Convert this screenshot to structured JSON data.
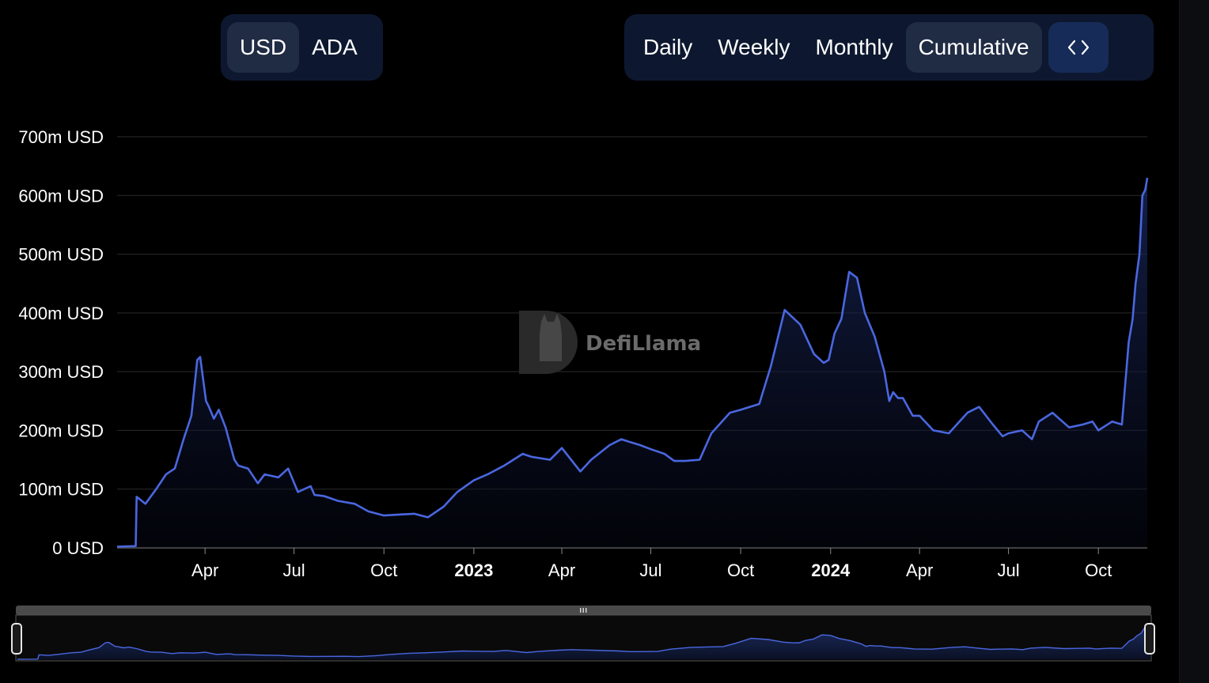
{
  "currency_toggle": {
    "options": [
      "USD",
      "ADA"
    ],
    "selected": "USD"
  },
  "period_toggle": {
    "options": [
      "Daily",
      "Weekly",
      "Monthly",
      "Cumulative"
    ],
    "selected": "Cumulative"
  },
  "embed_button": {
    "icon": "code-icon",
    "glyph": "<>"
  },
  "watermark": {
    "text": "DefiLlama"
  },
  "colors": {
    "line": "#4a67e0",
    "area_top": "#1b2a63",
    "grid": "#2a2a2a",
    "active_bg": "#202b44",
    "panel_bg": "#0d1830"
  },
  "chart_data": {
    "type": "area",
    "title": "",
    "xlabel": "",
    "ylabel": "",
    "grid": true,
    "ylim": [
      0,
      700
    ],
    "y_unit": "m USD",
    "y_ticks": [
      0,
      100,
      200,
      300,
      400,
      500,
      600,
      700
    ],
    "y_tick_labels": [
      "0 USD",
      "100m USD",
      "200m USD",
      "300m USD",
      "400m USD",
      "500m USD",
      "600m USD",
      "700m USD"
    ],
    "x_range": [
      "2022-01-01",
      "2024-11-20"
    ],
    "x_ticks": [
      {
        "date": "2022-04-01",
        "label": "Apr",
        "bold": false
      },
      {
        "date": "2022-07-01",
        "label": "Jul",
        "bold": false
      },
      {
        "date": "2022-10-01",
        "label": "Oct",
        "bold": false
      },
      {
        "date": "2023-01-01",
        "label": "2023",
        "bold": true
      },
      {
        "date": "2023-04-01",
        "label": "Apr",
        "bold": false
      },
      {
        "date": "2023-07-01",
        "label": "Jul",
        "bold": false
      },
      {
        "date": "2023-10-01",
        "label": "Oct",
        "bold": false
      },
      {
        "date": "2024-01-01",
        "label": "2024",
        "bold": true
      },
      {
        "date": "2024-04-01",
        "label": "Apr",
        "bold": false
      },
      {
        "date": "2024-07-01",
        "label": "Jul",
        "bold": false
      },
      {
        "date": "2024-10-01",
        "label": "Oct",
        "bold": false
      }
    ],
    "series": [
      {
        "x": [
          "2022-01-01",
          "2022-01-20",
          "2022-01-21",
          "2022-01-30",
          "2022-02-10",
          "2022-02-20",
          "2022-03-01",
          "2022-03-10",
          "2022-03-18",
          "2022-03-24",
          "2022-03-27",
          "2022-04-02",
          "2022-04-05",
          "2022-04-10",
          "2022-04-15",
          "2022-04-22",
          "2022-05-01",
          "2022-05-05",
          "2022-05-15",
          "2022-05-25",
          "2022-06-01",
          "2022-06-15",
          "2022-06-25",
          "2022-07-05",
          "2022-07-18",
          "2022-07-22",
          "2022-08-01",
          "2022-08-15",
          "2022-09-01",
          "2022-09-15",
          "2022-10-01",
          "2022-10-20",
          "2022-11-01",
          "2022-11-15",
          "2022-12-01",
          "2022-12-15",
          "2023-01-01",
          "2023-01-15",
          "2023-02-01",
          "2023-02-20",
          "2023-03-01",
          "2023-03-20",
          "2023-04-01",
          "2023-04-20",
          "2023-05-01",
          "2023-05-20",
          "2023-06-01",
          "2023-06-10",
          "2023-06-20",
          "2023-07-01",
          "2023-07-15",
          "2023-07-25",
          "2023-08-05",
          "2023-08-20",
          "2023-09-01",
          "2023-09-20",
          "2023-10-01",
          "2023-10-20",
          "2023-11-01",
          "2023-11-15",
          "2023-12-01",
          "2023-12-15",
          "2023-12-25",
          "2023-12-30",
          "2024-01-05",
          "2024-01-12",
          "2024-01-20",
          "2024-01-28",
          "2024-02-05",
          "2024-02-15",
          "2024-02-25",
          "2024-03-01",
          "2024-03-05",
          "2024-03-10",
          "2024-03-15",
          "2024-03-20",
          "2024-03-25",
          "2024-04-01",
          "2024-04-15",
          "2024-05-01",
          "2024-05-20",
          "2024-06-01",
          "2024-06-15",
          "2024-06-25",
          "2024-07-01",
          "2024-07-15",
          "2024-07-25",
          "2024-08-01",
          "2024-08-15",
          "2024-09-01",
          "2024-09-15",
          "2024-09-25",
          "2024-10-01",
          "2024-10-15",
          "2024-10-25",
          "2024-11-01",
          "2024-11-05",
          "2024-11-08",
          "2024-11-12",
          "2024-11-15",
          "2024-11-18",
          "2024-11-20"
        ],
        "y": [
          2,
          3,
          87,
          75,
          100,
          125,
          135,
          185,
          225,
          320,
          325,
          250,
          240,
          220,
          235,
          205,
          150,
          140,
          135,
          110,
          125,
          120,
          135,
          95,
          105,
          90,
          88,
          80,
          75,
          62,
          55,
          57,
          58,
          52,
          70,
          95,
          115,
          125,
          140,
          160,
          155,
          150,
          170,
          130,
          150,
          175,
          185,
          180,
          175,
          168,
          160,
          148,
          148,
          150,
          195,
          230,
          235,
          245,
          310,
          405,
          380,
          330,
          315,
          320,
          365,
          390,
          470,
          460,
          400,
          360,
          300,
          250,
          265,
          255,
          255,
          240,
          225,
          225,
          200,
          195,
          230,
          240,
          210,
          190,
          195,
          200,
          185,
          215,
          230,
          205,
          210,
          215,
          200,
          215,
          210,
          350,
          390,
          450,
          500,
          600,
          610,
          630
        ]
      }
    ]
  }
}
